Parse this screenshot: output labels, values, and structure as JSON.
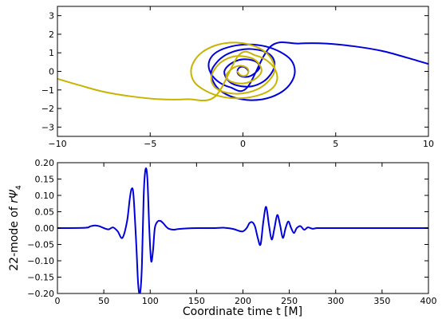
{
  "chart_data": [
    {
      "type": "line",
      "title": "",
      "xlabel": "",
      "ylabel": "",
      "xlim": [
        -10,
        10
      ],
      "ylim": [
        -3.5,
        3.5
      ],
      "xticks": [
        -10,
        -5,
        0,
        5,
        10
      ],
      "yticks": [
        -3,
        -2,
        -1,
        0,
        1,
        2,
        3
      ],
      "xtick_labels": [
        "−10",
        "−5",
        "0",
        "5",
        "10"
      ],
      "ytick_labels": [
        "−3",
        "−2",
        "−1",
        "0",
        "1",
        "2",
        "3"
      ],
      "grid": false,
      "series": [
        {
          "color": "#0000dd",
          "x": [
            0.3,
            0.2,
            0.0,
            -0.2,
            -0.3,
            -0.2,
            0.1,
            0.4,
            0.7,
            0.9,
            0.8,
            0.5,
            0.0,
            -0.4,
            -0.8,
            -1.0,
            -0.9,
            -0.6,
            -0.1,
            0.5,
            1.1,
            1.5,
            1.7,
            1.6,
            1.2,
            0.5,
            -0.2,
            -0.9,
            -1.4,
            -1.7,
            -1.6,
            -1.2,
            -0.5,
            0.4,
            1.3,
            2.1,
            2.6,
            2.8,
            2.6,
            2.0,
            1.2,
            0.3,
            -0.6,
            -1.4,
            -1.8,
            -1.8,
            -1.4,
            -0.7,
            0.2,
            1.5,
            3.0,
            4.5,
            6.0,
            7.5,
            8.8,
            10.0
          ],
          "y": [
            0.0,
            0.15,
            0.25,
            0.2,
            0.0,
            -0.2,
            -0.3,
            -0.25,
            -0.05,
            0.2,
            0.45,
            0.6,
            0.65,
            0.55,
            0.3,
            0.0,
            -0.35,
            -0.65,
            -0.8,
            -0.8,
            -0.55,
            -0.15,
            0.3,
            0.75,
            1.05,
            1.2,
            1.15,
            0.9,
            0.5,
            0.0,
            -0.55,
            -1.05,
            -1.4,
            -1.55,
            -1.45,
            -1.1,
            -0.6,
            0.0,
            0.6,
            1.05,
            1.35,
            1.45,
            1.35,
            1.05,
            0.6,
            0.05,
            -0.5,
            -0.85,
            -0.9,
            1.35,
            1.5,
            1.5,
            1.35,
            1.1,
            0.75,
            0.4
          ]
        },
        {
          "color": "#c8b400",
          "x": [
            -0.3,
            -0.2,
            0.0,
            0.2,
            0.3,
            0.2,
            -0.1,
            -0.4,
            -0.7,
            -0.9,
            -0.8,
            -0.5,
            0.0,
            0.4,
            0.8,
            1.0,
            0.9,
            0.6,
            0.1,
            -0.5,
            -1.1,
            -1.5,
            -1.7,
            -1.6,
            -1.2,
            -0.5,
            0.2,
            0.9,
            1.4,
            1.7,
            1.6,
            1.2,
            0.5,
            -0.4,
            -1.3,
            -2.1,
            -2.6,
            -2.8,
            -2.6,
            -2.0,
            -1.2,
            -0.3,
            0.6,
            1.4,
            1.8,
            1.8,
            1.4,
            0.7,
            -0.2,
            -1.5,
            -3.0,
            -4.5,
            -6.0,
            -7.5,
            -8.8,
            -10.0
          ],
          "y": [
            0.0,
            -0.15,
            -0.25,
            -0.2,
            0.0,
            0.2,
            0.3,
            0.25,
            0.05,
            -0.2,
            -0.45,
            -0.6,
            -0.65,
            -0.55,
            -0.3,
            0.0,
            0.35,
            0.65,
            0.8,
            0.8,
            0.55,
            0.15,
            -0.3,
            -0.75,
            -1.05,
            -1.2,
            -1.15,
            -0.9,
            -0.5,
            0.0,
            0.55,
            1.05,
            1.4,
            1.55,
            1.45,
            1.1,
            0.6,
            0.0,
            -0.6,
            -1.05,
            -1.35,
            -1.45,
            -1.35,
            -1.05,
            -0.6,
            -0.05,
            0.5,
            0.85,
            0.9,
            -1.35,
            -1.5,
            -1.5,
            -1.35,
            -1.1,
            -0.75,
            -0.4
          ]
        }
      ]
    },
    {
      "type": "line",
      "title": "",
      "xlabel": "Coordinate time t [M]",
      "ylabel_prefix": "22-mode of ",
      "ylabel_math": "rΨ",
      "ylabel_sub": "4",
      "xlim": [
        0,
        400
      ],
      "ylim": [
        -0.2,
        0.2
      ],
      "xticks": [
        0,
        50,
        100,
        150,
        200,
        250,
        300,
        350,
        400
      ],
      "yticks": [
        -0.2,
        -0.15,
        -0.1,
        -0.05,
        0.0,
        0.05,
        0.1,
        0.15,
        0.2
      ],
      "xtick_labels": [
        "0",
        "50",
        "100",
        "150",
        "200",
        "250",
        "300",
        "350",
        "400"
      ],
      "ytick_labels": [
        "−0.20",
        "−0.15",
        "−0.10",
        "−0.05",
        "0.00",
        "0.05",
        "0.10",
        "0.15",
        "0.20"
      ],
      "grid": false,
      "series": [
        {
          "color": "#0000dd",
          "x": [
            0,
            30,
            35,
            40,
            45,
            50,
            55,
            60,
            65,
            70,
            75,
            78,
            80,
            82,
            85,
            87,
            89,
            91,
            93,
            95,
            97,
            99,
            101,
            103,
            105,
            108,
            111,
            114,
            117,
            120,
            125,
            130,
            140,
            150,
            160,
            170,
            180,
            190,
            195,
            200,
            204,
            207,
            210,
            213,
            216,
            219,
            222,
            225,
            228,
            231,
            234,
            237,
            240,
            243,
            246,
            249,
            252,
            255,
            258,
            262,
            266,
            270,
            275,
            280,
            290,
            300,
            400
          ],
          "y": [
            0.0,
            0.001,
            0.005,
            0.008,
            0.006,
            0.0,
            -0.004,
            0.002,
            -0.01,
            -0.03,
            0.02,
            0.09,
            0.12,
            0.1,
            -0.05,
            -0.17,
            -0.2,
            -0.12,
            0.1,
            0.18,
            0.15,
            0.0,
            -0.1,
            -0.07,
            0.0,
            0.02,
            0.022,
            0.015,
            0.005,
            -0.002,
            -0.005,
            -0.003,
            -0.001,
            0.0,
            0.0,
            0.0,
            0.001,
            -0.003,
            -0.008,
            -0.01,
            0.0,
            0.015,
            0.018,
            0.005,
            -0.03,
            -0.05,
            0.02,
            0.065,
            0.01,
            -0.035,
            0.0,
            0.04,
            0.01,
            -0.03,
            0.0,
            0.02,
            0.0,
            -0.015,
            0.0,
            0.006,
            -0.005,
            0.002,
            -0.002,
            0.0,
            0.0,
            0.0,
            0.0
          ]
        }
      ]
    }
  ]
}
